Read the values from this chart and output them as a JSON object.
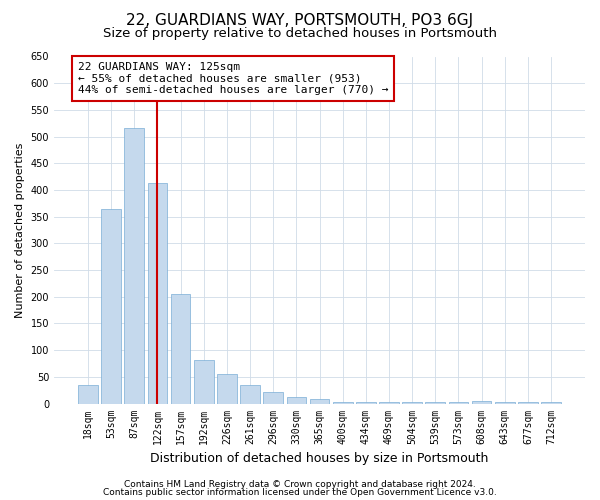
{
  "title": "22, GUARDIANS WAY, PORTSMOUTH, PO3 6GJ",
  "subtitle": "Size of property relative to detached houses in Portsmouth",
  "xlabel": "Distribution of detached houses by size in Portsmouth",
  "ylabel": "Number of detached properties",
  "bar_values": [
    35,
    365,
    517,
    413,
    205,
    82,
    55,
    35,
    22,
    12,
    8,
    2,
    2,
    2,
    2,
    2,
    2,
    5,
    2,
    2,
    2
  ],
  "bar_labels": [
    "18sqm",
    "53sqm",
    "87sqm",
    "122sqm",
    "157sqm",
    "192sqm",
    "226sqm",
    "261sqm",
    "296sqm",
    "330sqm",
    "365sqm",
    "400sqm",
    "434sqm",
    "469sqm",
    "504sqm",
    "539sqm",
    "573sqm",
    "608sqm",
    "643sqm",
    "677sqm",
    "712sqm"
  ],
  "bar_color": "#c5d9ed",
  "bar_edge_color": "#7aaed6",
  "grid_color": "#d0dce8",
  "background_color": "#ffffff",
  "property_line_index": 3,
  "property_line_color": "#cc0000",
  "annotation_line1": "22 GUARDIANS WAY: 125sqm",
  "annotation_line2": "← 55% of detached houses are smaller (953)",
  "annotation_line3": "44% of semi-detached houses are larger (770) →",
  "annotation_box_color": "#ffffff",
  "annotation_box_edge_color": "#cc0000",
  "ylim": [
    0,
    650
  ],
  "yticks": [
    0,
    50,
    100,
    150,
    200,
    250,
    300,
    350,
    400,
    450,
    500,
    550,
    600,
    650
  ],
  "footnote1": "Contains HM Land Registry data © Crown copyright and database right 2024.",
  "footnote2": "Contains public sector information licensed under the Open Government Licence v3.0.",
  "title_fontsize": 11,
  "subtitle_fontsize": 9.5,
  "xlabel_fontsize": 9,
  "ylabel_fontsize": 8,
  "tick_fontsize": 7,
  "annotation_fontsize": 8,
  "footnote_fontsize": 6.5
}
